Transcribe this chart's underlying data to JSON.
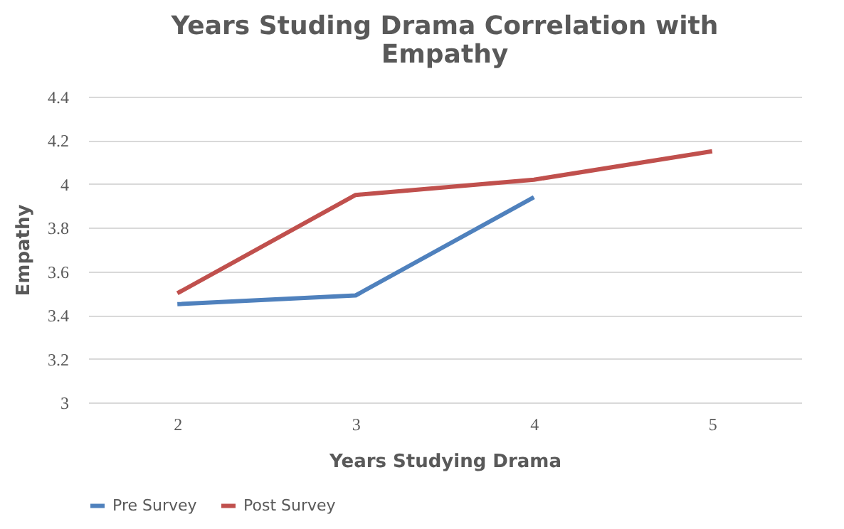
{
  "chart_data": {
    "type": "line",
    "title": "Years Studing Drama Correlation with Empathy",
    "xlabel": "Years Studying Drama",
    "ylabel": "Empathy",
    "categories": [
      "2",
      "3",
      "4",
      "5"
    ],
    "series": [
      {
        "name": "Pre Survey",
        "color": "#4f81bd",
        "values": [
          3.45,
          3.49,
          3.94,
          null
        ]
      },
      {
        "name": "Post Survey",
        "color": "#c0504d",
        "values": [
          3.5,
          3.95,
          4.02,
          4.15
        ]
      }
    ],
    "ylim": [
      3,
      4.4
    ],
    "yticks": [
      3,
      3.2,
      3.4,
      3.6,
      3.8,
      4,
      4.2,
      4.4
    ],
    "grid": "y",
    "legend": "bottom",
    "marker": "none",
    "line_style": "solid"
  }
}
